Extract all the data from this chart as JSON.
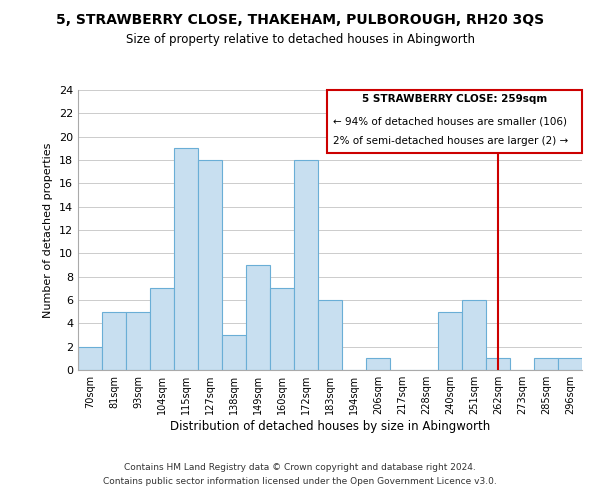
{
  "title": "5, STRAWBERRY CLOSE, THAKEHAM, PULBOROUGH, RH20 3QS",
  "subtitle": "Size of property relative to detached houses in Abingworth",
  "xlabel": "Distribution of detached houses by size in Abingworth",
  "ylabel": "Number of detached properties",
  "bar_labels": [
    "70sqm",
    "81sqm",
    "93sqm",
    "104sqm",
    "115sqm",
    "127sqm",
    "138sqm",
    "149sqm",
    "160sqm",
    "172sqm",
    "183sqm",
    "194sqm",
    "206sqm",
    "217sqm",
    "228sqm",
    "240sqm",
    "251sqm",
    "262sqm",
    "273sqm",
    "285sqm",
    "296sqm"
  ],
  "bar_heights": [
    2,
    5,
    5,
    7,
    19,
    18,
    3,
    9,
    7,
    18,
    6,
    0,
    1,
    0,
    0,
    5,
    6,
    1,
    0,
    1,
    1
  ],
  "bar_color": "#c8dff0",
  "bar_edge_color": "#6aaed6",
  "vline_x": 17,
  "vline_color": "#cc0000",
  "annotation_title": "5 STRAWBERRY CLOSE: 259sqm",
  "annotation_line1": "← 94% of detached houses are smaller (106)",
  "annotation_line2": "2% of semi-detached houses are larger (2) →",
  "annotation_box_color": "#ffffff",
  "annotation_box_edge_color": "#cc0000",
  "ylim": [
    0,
    24
  ],
  "yticks": [
    0,
    2,
    4,
    6,
    8,
    10,
    12,
    14,
    16,
    18,
    20,
    22,
    24
  ],
  "footer1": "Contains HM Land Registry data © Crown copyright and database right 2024.",
  "footer2": "Contains public sector information licensed under the Open Government Licence v3.0.",
  "background_color": "#ffffff",
  "grid_color": "#cccccc"
}
